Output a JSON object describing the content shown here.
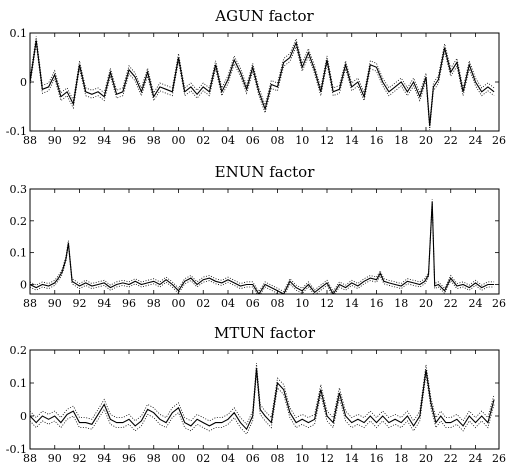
{
  "chart_data": [
    {
      "type": "line",
      "title": "AGUN factor",
      "xlabel": "",
      "ylabel": "",
      "xlim": [
        1988,
        2025.9
      ],
      "ylim": [
        -0.1,
        0.1
      ],
      "xticks": [
        1988,
        1990,
        1992,
        1994,
        1996,
        1998,
        2000,
        2002,
        2004,
        2006,
        2008,
        2010,
        2012,
        2014,
        2016,
        2018,
        2020,
        2022,
        2024,
        2026
      ],
      "xtick_labels": [
        "88",
        "90",
        "92",
        "94",
        "96",
        "98",
        "00",
        "02",
        "04",
        "06",
        "08",
        "10",
        "12",
        "14",
        "16",
        "18",
        "20",
        "22",
        "24",
        "26"
      ],
      "yticks": [
        -0.1,
        0,
        0.1
      ],
      "ytick_labels": [
        "-0.1",
        "0",
        "0.1"
      ],
      "band_halfwidth": 0.008,
      "grid": false,
      "series": [
        {
          "x": [
            1988.0,
            1988.5,
            1989.0,
            1989.5,
            1990.0,
            1990.5,
            1991.0,
            1991.5,
            1992.0,
            1992.5,
            1993.0,
            1993.5,
            1994.0,
            1994.5,
            1995.0,
            1995.5,
            1996.0,
            1996.5,
            1997.0,
            1997.5,
            1998.0,
            1998.5,
            1999.0,
            1999.5,
            2000.0,
            2000.5,
            2001.0,
            2001.5,
            2002.0,
            2002.5,
            2003.0,
            2003.5,
            2004.0,
            2004.5,
            2005.0,
            2005.5,
            2006.0,
            2006.5,
            2007.0,
            2007.5,
            2008.0,
            2008.5,
            2009.0,
            2009.5,
            2010.0,
            2010.5,
            2011.0,
            2011.5,
            2012.0,
            2012.5,
            2013.0,
            2013.5,
            2014.0,
            2014.5,
            2015.0,
            2015.5,
            2016.0,
            2016.5,
            2017.0,
            2017.5,
            2018.0,
            2018.5,
            2019.0,
            2019.5,
            2020.0,
            2020.3,
            2020.6,
            2021.0,
            2021.5,
            2022.0,
            2022.5,
            2023.0,
            2023.5,
            2024.0,
            2024.5,
            2025.0,
            2025.5
          ],
          "y": [
            0.0,
            0.085,
            -0.015,
            -0.01,
            0.015,
            -0.03,
            -0.02,
            -0.045,
            0.035,
            -0.02,
            -0.025,
            -0.02,
            -0.03,
            0.02,
            -0.025,
            -0.02,
            0.025,
            0.01,
            -0.02,
            0.02,
            -0.03,
            -0.01,
            -0.015,
            -0.02,
            0.05,
            -0.02,
            -0.01,
            -0.025,
            -0.01,
            -0.02,
            0.035,
            -0.02,
            0.005,
            0.045,
            0.02,
            -0.015,
            0.03,
            -0.02,
            -0.055,
            -0.005,
            -0.01,
            0.04,
            0.05,
            0.08,
            0.03,
            0.06,
            0.025,
            -0.02,
            0.045,
            -0.02,
            -0.015,
            0.035,
            -0.01,
            0.0,
            -0.03,
            0.035,
            0.03,
            0.0,
            -0.02,
            -0.01,
            0.0,
            -0.02,
            0.0,
            -0.03,
            0.01,
            -0.09,
            -0.01,
            0.005,
            0.07,
            0.02,
            0.04,
            -0.02,
            0.035,
            0.0,
            -0.02,
            -0.01,
            -0.02
          ]
        }
      ]
    },
    {
      "type": "line",
      "title": "ENUN factor",
      "xlabel": "",
      "ylabel": "",
      "xlim": [
        1988,
        2025.9
      ],
      "ylim": [
        -0.03,
        0.3
      ],
      "xticks": [
        1988,
        1990,
        1992,
        1994,
        1996,
        1998,
        2000,
        2002,
        2004,
        2006,
        2008,
        2010,
        2012,
        2014,
        2016,
        2018,
        2020,
        2022,
        2024,
        2026
      ],
      "xtick_labels": [
        "88",
        "90",
        "92",
        "94",
        "96",
        "98",
        "00",
        "02",
        "04",
        "06",
        "08",
        "10",
        "12",
        "14",
        "16",
        "18",
        "20",
        "22",
        "24",
        "26"
      ],
      "yticks": [
        0,
        0.1,
        0.2,
        0.3
      ],
      "ytick_labels": [
        "0",
        "0.1",
        "0.2",
        "0.3"
      ],
      "band_halfwidth": 0.008,
      "grid": false,
      "series": [
        {
          "x": [
            1988.0,
            1988.5,
            1989.0,
            1989.5,
            1990.0,
            1990.3,
            1990.6,
            1990.9,
            1991.1,
            1991.4,
            1992.0,
            1992.5,
            1993.0,
            1993.5,
            1994.0,
            1994.5,
            1995.0,
            1995.5,
            1996.0,
            1996.5,
            1997.0,
            1997.5,
            1998.0,
            1998.5,
            1999.0,
            1999.5,
            2000.0,
            2000.5,
            2001.0,
            2001.5,
            2002.0,
            2002.5,
            2003.0,
            2003.5,
            2004.0,
            2004.5,
            2005.0,
            2005.5,
            2006.0,
            2006.5,
            2007.0,
            2007.5,
            2008.0,
            2008.5,
            2009.0,
            2009.5,
            2010.0,
            2010.5,
            2011.0,
            2011.5,
            2012.0,
            2012.5,
            2013.0,
            2013.5,
            2014.0,
            2014.5,
            2015.0,
            2015.5,
            2016.0,
            2016.3,
            2016.6,
            2017.0,
            2017.5,
            2018.0,
            2018.5,
            2019.0,
            2019.5,
            2019.9,
            2020.2,
            2020.5,
            2020.7,
            2021.0,
            2021.5,
            2022.0,
            2022.5,
            2023.0,
            2023.5,
            2024.0,
            2024.5,
            2025.0,
            2025.5
          ],
          "y": [
            0.0,
            -0.01,
            0.0,
            -0.005,
            0.005,
            0.02,
            0.04,
            0.08,
            0.13,
            0.01,
            -0.005,
            0.005,
            -0.005,
            0.0,
            0.005,
            -0.01,
            0.0,
            0.005,
            0.0,
            0.01,
            0.0,
            0.005,
            0.01,
            0.0,
            0.015,
            0.0,
            -0.02,
            0.01,
            0.02,
            0.0,
            0.015,
            0.02,
            0.01,
            0.005,
            0.015,
            0.005,
            -0.005,
            0.0,
            0.0,
            -0.03,
            0.0,
            -0.01,
            -0.02,
            -0.03,
            0.01,
            -0.01,
            -0.02,
            0.0,
            -0.025,
            -0.01,
            0.005,
            -0.03,
            0.0,
            -0.01,
            0.005,
            -0.005,
            0.01,
            0.02,
            0.015,
            0.035,
            0.01,
            0.005,
            0.0,
            -0.005,
            0.01,
            0.005,
            0.0,
            0.01,
            0.03,
            0.26,
            -0.005,
            0.0,
            -0.02,
            0.02,
            -0.005,
            0.0,
            -0.01,
            0.005,
            -0.01,
            0.0,
            0.0
          ]
        }
      ]
    },
    {
      "type": "line",
      "title": "MTUN factor",
      "xlabel": "",
      "ylabel": "",
      "xlim": [
        1988,
        2025.9
      ],
      "ylim": [
        -0.1,
        0.2
      ],
      "xticks": [
        1988,
        1990,
        1992,
        1994,
        1996,
        1998,
        2000,
        2002,
        2004,
        2006,
        2008,
        2010,
        2012,
        2014,
        2016,
        2018,
        2020,
        2022,
        2024,
        2026
      ],
      "xtick_labels": [
        "88",
        "90",
        "92",
        "94",
        "96",
        "98",
        "00",
        "02",
        "04",
        "06",
        "08",
        "10",
        "12",
        "14",
        "16",
        "18",
        "20",
        "22",
        "24",
        "26"
      ],
      "yticks": [
        -0.1,
        0,
        0.1,
        0.2
      ],
      "ytick_labels": [
        "-0.1",
        "0",
        "0.1",
        "0.2"
      ],
      "band_halfwidth": 0.015,
      "grid": false,
      "series": [
        {
          "x": [
            1988.0,
            1988.5,
            1989.0,
            1989.5,
            1990.0,
            1990.5,
            1991.0,
            1991.5,
            1992.0,
            1992.5,
            1993.0,
            1993.5,
            1994.0,
            1994.5,
            1995.0,
            1995.5,
            1996.0,
            1996.5,
            1997.0,
            1997.5,
            1998.0,
            1998.5,
            1999.0,
            1999.5,
            2000.0,
            2000.5,
            2001.0,
            2001.5,
            2002.0,
            2002.5,
            2003.0,
            2003.5,
            2004.0,
            2004.5,
            2005.0,
            2005.5,
            2006.0,
            2006.3,
            2006.6,
            2007.0,
            2007.5,
            2008.0,
            2008.5,
            2009.0,
            2009.5,
            2010.0,
            2010.5,
            2011.0,
            2011.5,
            2012.0,
            2012.5,
            2013.0,
            2013.5,
            2014.0,
            2014.5,
            2015.0,
            2015.5,
            2016.0,
            2016.5,
            2017.0,
            2017.5,
            2018.0,
            2018.5,
            2019.0,
            2019.5,
            2020.0,
            2020.4,
            2020.8,
            2021.2,
            2021.6,
            2022.0,
            2022.5,
            2023.0,
            2023.5,
            2024.0,
            2024.5,
            2025.0,
            2025.5
          ],
          "y": [
            0.0,
            -0.02,
            0.0,
            -0.01,
            0.0,
            -0.02,
            0.005,
            0.015,
            -0.02,
            -0.02,
            -0.025,
            0.005,
            0.035,
            -0.01,
            -0.02,
            -0.02,
            -0.01,
            -0.03,
            -0.015,
            0.02,
            0.01,
            -0.01,
            -0.02,
            0.01,
            0.025,
            -0.02,
            -0.03,
            -0.01,
            -0.02,
            -0.03,
            -0.02,
            -0.02,
            -0.01,
            0.01,
            -0.02,
            -0.04,
            0.0,
            0.145,
            0.02,
            0.0,
            -0.02,
            0.1,
            0.08,
            0.01,
            -0.02,
            -0.01,
            -0.02,
            -0.01,
            0.08,
            0.0,
            -0.02,
            0.07,
            0.0,
            -0.02,
            -0.01,
            -0.02,
            0.0,
            -0.02,
            0.0,
            -0.02,
            -0.01,
            -0.02,
            0.0,
            -0.03,
            0.0,
            0.14,
            0.04,
            -0.02,
            0.0,
            -0.02,
            -0.02,
            -0.01,
            -0.03,
            0.0,
            -0.02,
            0.0,
            -0.02,
            0.05
          ]
        }
      ]
    }
  ]
}
